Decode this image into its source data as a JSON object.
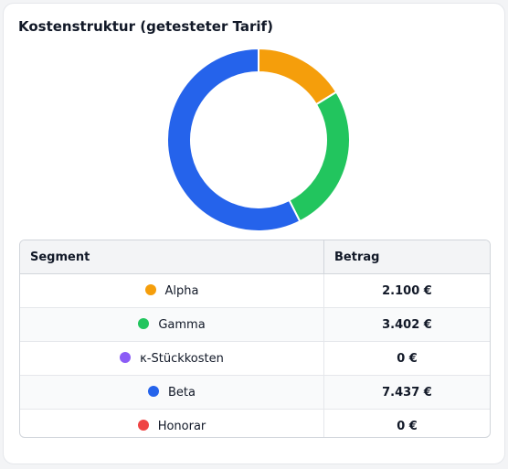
{
  "chart_data": {
    "type": "pie",
    "title": "Kostenstruktur (getesteter Tarif)",
    "columns": [
      "Segment",
      "Betrag"
    ],
    "slices": [
      {
        "label": "Alpha",
        "value": 2100,
        "display": "2.100 €",
        "color": "#f59e0b"
      },
      {
        "label": "Gamma",
        "value": 3402,
        "display": "3.402 €",
        "color": "#22c55e"
      },
      {
        "label": "κ-Stückkosten",
        "value": 0,
        "display": "0 €",
        "color": "#8b5cf6"
      },
      {
        "label": "Beta",
        "value": 7437,
        "display": "7.437 €",
        "color": "#2563eb"
      },
      {
        "label": "Honorar",
        "value": 0,
        "display": "0 €",
        "color": "#ef4444"
      }
    ]
  }
}
